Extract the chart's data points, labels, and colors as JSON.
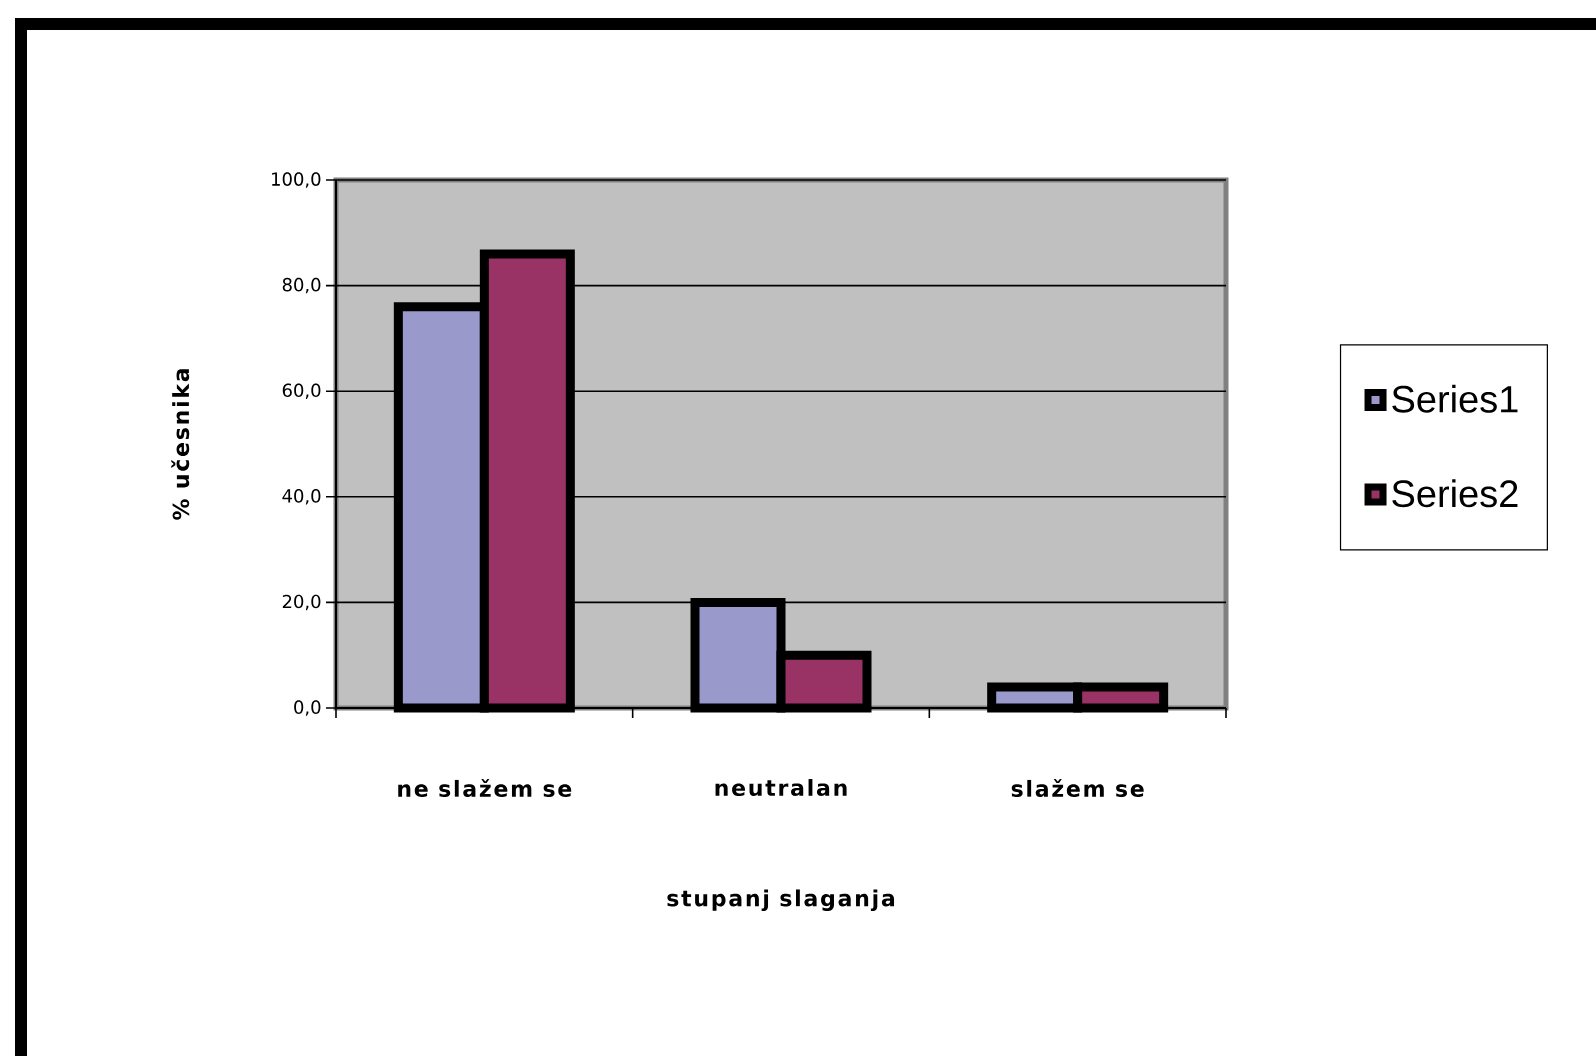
{
  "chart_data": {
    "type": "bar",
    "xlabel": "stupanj slaganja",
    "ylabel": "% učesnika",
    "categories": [
      "ne slažem se",
      "neutralan",
      "slažem se"
    ],
    "series": [
      {
        "name": "Series1",
        "color": "#9999cc",
        "values": [
          76,
          20,
          4
        ]
      },
      {
        "name": "Series2",
        "color": "#993366",
        "values": [
          86,
          10,
          4
        ]
      }
    ],
    "ylim": [
      0,
      100
    ],
    "yticks": [
      {
        "value": 0,
        "label": "0,0"
      },
      {
        "value": 20,
        "label": "20,0"
      },
      {
        "value": 40,
        "label": "40,0"
      },
      {
        "value": 60,
        "label": "60,0"
      },
      {
        "value": 80,
        "label": "80,0"
      },
      {
        "value": 100,
        "label": "100,0"
      }
    ],
    "grid": "y",
    "legend": "right"
  }
}
